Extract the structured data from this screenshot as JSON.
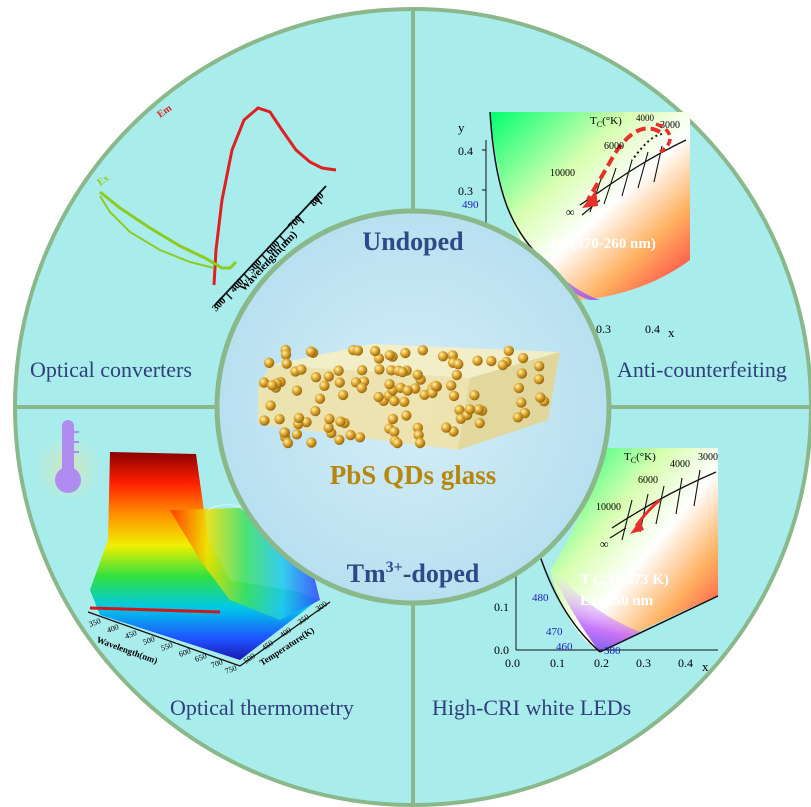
{
  "center": {
    "top_label": "Undoped",
    "caption": "PbS QDs glass",
    "bottom_label_base": "Tm",
    "bottom_label_sup": "3+",
    "bottom_label_rest": "-doped"
  },
  "quadrants": {
    "top_left": {
      "label": "Optical converters"
    },
    "top_right": {
      "label": "Anti-counterfeiting"
    },
    "bottom_left": {
      "label": "Optical thermometry"
    },
    "bottom_right": {
      "label": "High-CRI white LEDs"
    }
  },
  "spectrum_plot": {
    "series": [
      "Em",
      "Ex"
    ],
    "axis_title": "Wavelength(nm)",
    "ticks": [
      "300",
      "400",
      "500",
      "600",
      "700",
      "800"
    ]
  },
  "cie_top": {
    "y_label": "y",
    "x_label": "x",
    "y_ticks": [
      "0.4",
      "0.3"
    ],
    "x_ticks": [
      "0.3",
      "0.4"
    ],
    "wavelength_mark": "490",
    "tc_label": "T",
    "tc_sub": "C",
    "tc_unit": "(°K)",
    "cct_labels": [
      "10000",
      "6000",
      "4000",
      "3000",
      "∞"
    ],
    "annotation": "Ex (370-260 nm)"
  },
  "cie_bottom": {
    "x_label": "x",
    "y_ticks": [
      "0.1",
      "0.0"
    ],
    "x_ticks": [
      "0.0",
      "0.1",
      "0.2",
      "0.3",
      "0.4"
    ],
    "wavelength_marks": [
      "480",
      "470",
      "460",
      "380"
    ],
    "tc_label": "T",
    "tc_sub": "C",
    "tc_unit": "(°K)",
    "cct_labels": [
      "10000",
      "6000",
      "4000",
      "3000",
      "∞"
    ],
    "annotation_line1": "T (293-473 K)",
    "annotation_line2": "Ex=350 nm"
  },
  "thermo_plot": {
    "axis_wavelength": "Wavelength(nm)",
    "axis_temperature": "Temperature(K)",
    "wl_ticks": [
      "750",
      "700",
      "650",
      "600",
      "550",
      "500",
      "450",
      "400",
      "350"
    ],
    "temp_ticks": [
      "500",
      "450",
      "400",
      "350",
      "300"
    ]
  },
  "colors": {
    "frame": "#8ab88a",
    "quadrant_fill": "#a9ecec",
    "center_fill": "#c3e6f4",
    "quad_text": "#2f3f7a",
    "center_title": "#2b4a86",
    "caption": "#b8860b",
    "em_curve": "#e02020",
    "ex_curve": "#8ccc20",
    "arrow": "#e8302a"
  }
}
